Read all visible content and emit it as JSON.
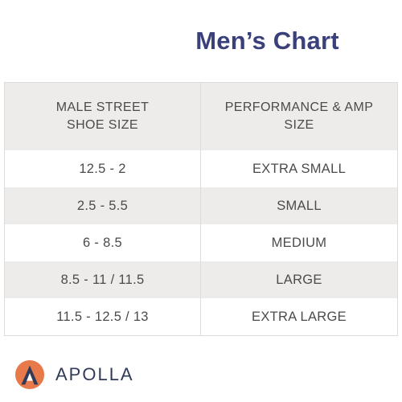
{
  "title": "Men’s Chart",
  "table": {
    "header": [
      [
        "MALE STREET",
        "SHOE SIZE"
      ],
      [
        "PERFORMANCE & AMP",
        "SIZE"
      ]
    ],
    "rows": [
      [
        "12.5 - 2",
        "EXTRA SMALL"
      ],
      [
        "2.5 - 5.5",
        "SMALL"
      ],
      [
        "6 - 8.5",
        "MEDIUM"
      ],
      [
        "8.5 - 11 / 11.5",
        "LARGE"
      ],
      [
        "11.5 - 12.5 / 13",
        "EXTRA LARGE"
      ]
    ]
  },
  "brand": {
    "name": "APOLLA",
    "icon": "apolla-logo-icon",
    "colors": {
      "circle": "#e8794a",
      "mark": "#2f3b57",
      "text": "#2f3b57"
    }
  },
  "colors": {
    "title": "#3a4079",
    "header_bg": "#eeecea",
    "stripe_bg": "#eeecea",
    "text": "#4b4b4b"
  }
}
